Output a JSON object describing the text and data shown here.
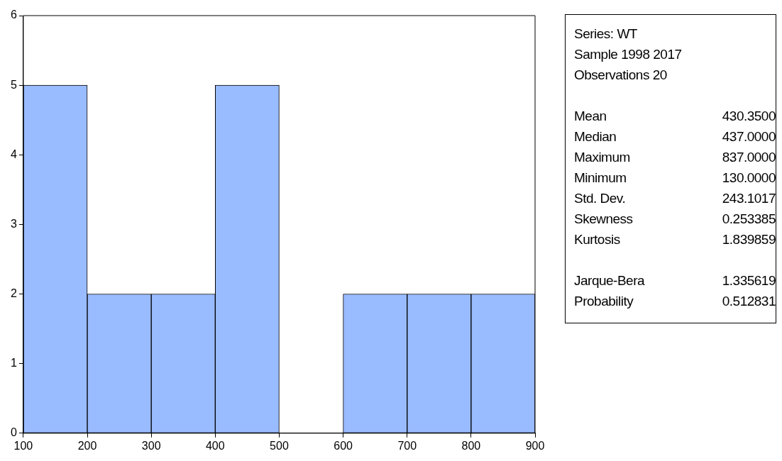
{
  "chart_data": {
    "type": "histogram",
    "bins": [
      100,
      200,
      300,
      400,
      500,
      600,
      700,
      800,
      900
    ],
    "values": [
      5,
      2,
      2,
      5,
      0,
      2,
      2,
      2
    ],
    "color": "#99bbff",
    "xlim": [
      100,
      900
    ],
    "xticks": [
      100,
      200,
      300,
      400,
      500,
      600,
      700,
      800,
      900
    ],
    "ylim": [
      0,
      6
    ],
    "yticks": [
      0,
      1,
      2,
      3,
      4,
      5,
      6
    ],
    "grid": false,
    "legend": false,
    "annotations": [
      "Series: WT",
      "Sample 1998 2017",
      "Observations 20",
      "Mean\t430.3500",
      "Median\t437.0000",
      "Maximum\t837.0000",
      "Minimum\t130.0000",
      "Std. Dev.\t243.1017",
      "Skewness\t0.253385",
      "Kurtosis\t1.839859",
      "Jarque-Bera\t1.335619",
      "Probability\t0.512831"
    ]
  }
}
